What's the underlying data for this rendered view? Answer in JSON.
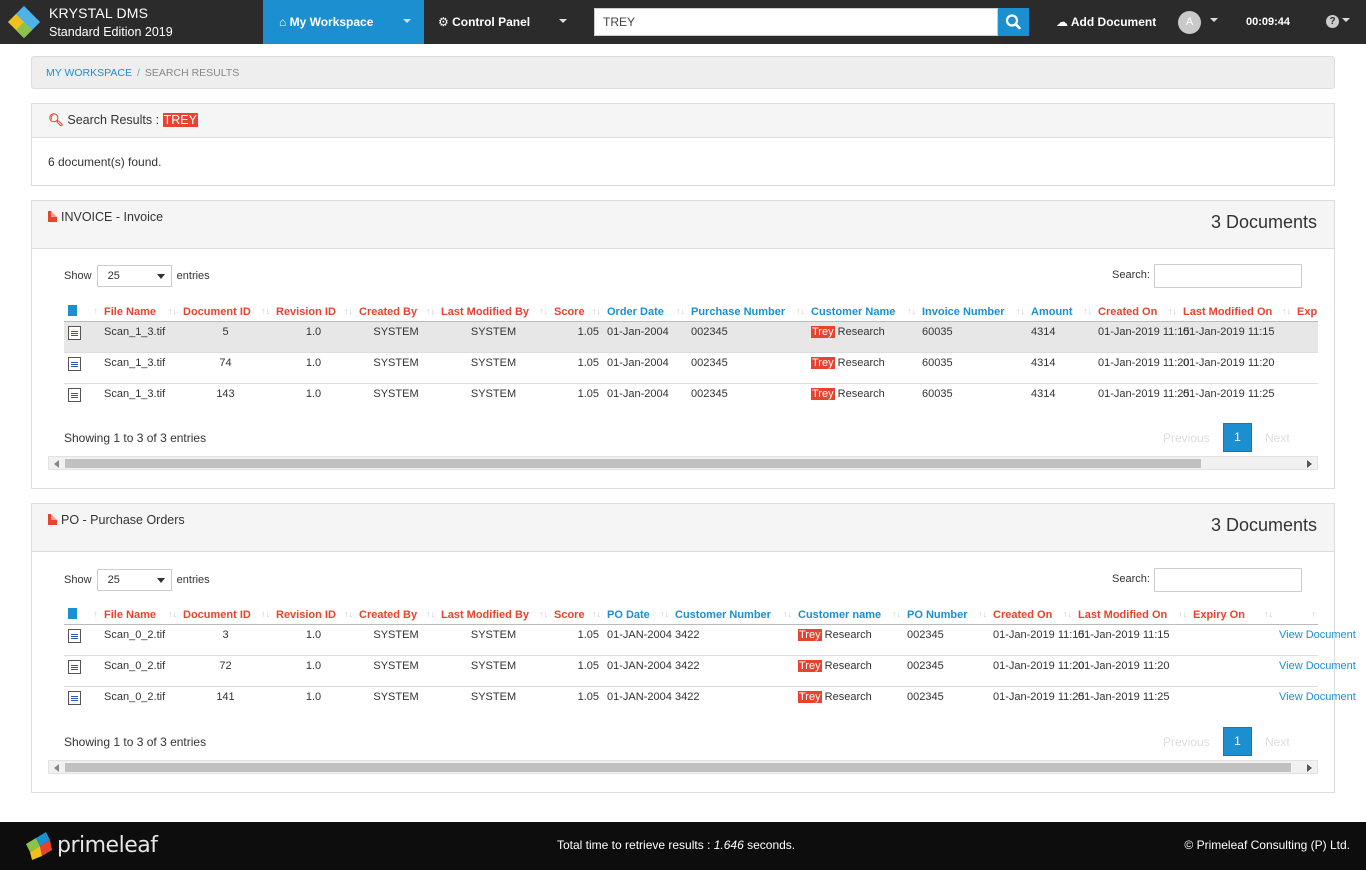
{
  "app": {
    "title": "KRYSTAL DMS",
    "edition": "Standard Edition 2019"
  },
  "nav": {
    "workspace": "My Workspace",
    "control_panel": "Control Panel",
    "search_value": "TREY",
    "add_document": "Add Document",
    "avatar_initial": "A",
    "clock": "00:09:44",
    "help": "?"
  },
  "breadcrumb": {
    "home": "MY WORKSPACE",
    "sep": "/",
    "current": "SEARCH RESULTS"
  },
  "results": {
    "label": "Search Results :",
    "term": "TREY",
    "count_text": "6 document(s) found."
  },
  "common": {
    "show": "Show",
    "entries": "entries",
    "page_size": "25",
    "search_label": "Search:",
    "previous": "Previous",
    "next": "Next",
    "page": "1",
    "sort_glyph": "↑↓",
    "sort_up": "↑",
    "hl_text": "Trey"
  },
  "invoice": {
    "title": "INVOICE - Invoice",
    "doc_count": "3 Documents",
    "showing": "Showing 1 to 3 of 3 entries",
    "columns": [
      "File Name",
      "Document ID",
      "Revision ID",
      "Created By",
      "Last Modified By",
      "Score",
      "Order Date",
      "Purchase Number",
      "Customer Name",
      "Invoice Number",
      "Amount",
      "Created On",
      "Last Modified On",
      "Exp"
    ],
    "rows": [
      {
        "file": "Scan_1_3.tif",
        "doc_id": "5",
        "rev": "1.0",
        "created_by": "SYSTEM",
        "modified_by": "SYSTEM",
        "score": "1.05",
        "order_date": "01-Jan-2004",
        "purchase_no": "002345",
        "customer_rest": " Research",
        "invoice_no": "60035",
        "amount": "4314",
        "created_on": "01-Jan-2019 11:15",
        "modified_on": "01-Jan-2019 11:15"
      },
      {
        "file": "Scan_1_3.tif",
        "doc_id": "74",
        "rev": "1.0",
        "created_by": "SYSTEM",
        "modified_by": "SYSTEM",
        "score": "1.05",
        "order_date": "01-Jan-2004",
        "purchase_no": "002345",
        "customer_rest": " Research",
        "invoice_no": "60035",
        "amount": "4314",
        "created_on": "01-Jan-2019 11:20",
        "modified_on": "01-Jan-2019 11:20"
      },
      {
        "file": "Scan_1_3.tif",
        "doc_id": "143",
        "rev": "1.0",
        "created_by": "SYSTEM",
        "modified_by": "SYSTEM",
        "score": "1.05",
        "order_date": "01-Jan-2004",
        "purchase_no": "002345",
        "customer_rest": " Research",
        "invoice_no": "60035",
        "amount": "4314",
        "created_on": "01-Jan-2019 11:25",
        "modified_on": "01-Jan-2019 11:25"
      }
    ]
  },
  "po": {
    "title": "PO - Purchase Orders",
    "doc_count": "3 Documents",
    "showing": "Showing 1 to 3 of 3 entries",
    "columns": [
      "File Name",
      "Document ID",
      "Revision ID",
      "Created By",
      "Last Modified By",
      "Score",
      "PO Date",
      "Customer Number",
      "Customer name",
      "PO Number",
      "Created On",
      "Last Modified On",
      "Expiry On"
    ],
    "view_link": "View Document",
    "rows": [
      {
        "file": "Scan_0_2.tif",
        "doc_id": "3",
        "rev": "1.0",
        "created_by": "SYSTEM",
        "modified_by": "SYSTEM",
        "score": "1.05",
        "po_date": "01-JAN-2004",
        "customer_no": "3422",
        "customer_rest": " Research",
        "po_no": "002345",
        "created_on": "01-Jan-2019 11:15",
        "modified_on": "01-Jan-2019 11:15"
      },
      {
        "file": "Scan_0_2.tif",
        "doc_id": "72",
        "rev": "1.0",
        "created_by": "SYSTEM",
        "modified_by": "SYSTEM",
        "score": "1.05",
        "po_date": "01-JAN-2004",
        "customer_no": "3422",
        "customer_rest": " Research",
        "po_no": "002345",
        "created_on": "01-Jan-2019 11:20",
        "modified_on": "01-Jan-2019 11:20"
      },
      {
        "file": "Scan_0_2.tif",
        "doc_id": "141",
        "rev": "1.0",
        "created_by": "SYSTEM",
        "modified_by": "SYSTEM",
        "score": "1.05",
        "po_date": "01-JAN-2004",
        "customer_no": "3422",
        "customer_rest": " Research",
        "po_no": "002345",
        "created_on": "01-Jan-2019 11:25",
        "modified_on": "01-Jan-2019 11:25"
      }
    ]
  },
  "footer": {
    "logo_text": "primeleaf",
    "time_prefix": "Total time to retrieve results : ",
    "time_value": "1.646",
    "time_suffix": " seconds.",
    "copyright": "© Primeleaf Consulting (P) Ltd."
  },
  "colors": {
    "accent": "#1c8fd0",
    "highlight": "#e8432e",
    "topbar": "#2b2b2b",
    "footer": "#0d0d0d"
  }
}
